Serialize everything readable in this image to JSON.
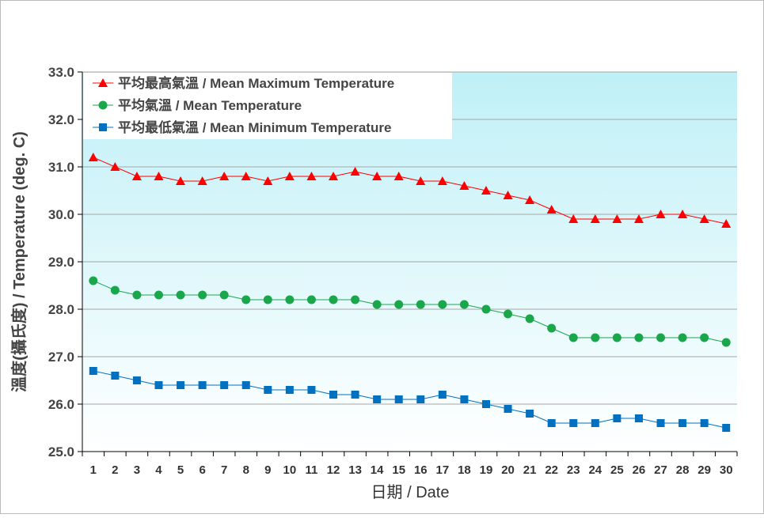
{
  "chart_data": {
    "type": "line",
    "xlabel": "日期 / Date",
    "ylabel": "溫度(攝氏度) / Temperature (deg. C)",
    "ylim": [
      25.0,
      33.0
    ],
    "yticks": [
      "25.0",
      "26.0",
      "27.0",
      "28.0",
      "29.0",
      "30.0",
      "31.0",
      "32.0",
      "33.0"
    ],
    "x": [
      1,
      2,
      3,
      4,
      5,
      6,
      7,
      8,
      9,
      10,
      11,
      12,
      13,
      14,
      15,
      16,
      17,
      18,
      19,
      20,
      21,
      22,
      23,
      24,
      25,
      26,
      27,
      28,
      29,
      30
    ],
    "grid": true,
    "legend_position": "top-left",
    "series": [
      {
        "name": "平均最高氣溫 / Mean Maximum Temperature",
        "color": "#ff0000",
        "marker": "triangle",
        "values": [
          31.2,
          31.0,
          30.8,
          30.8,
          30.7,
          30.7,
          30.8,
          30.8,
          30.7,
          30.8,
          30.8,
          30.8,
          30.9,
          30.8,
          30.8,
          30.7,
          30.7,
          30.6,
          30.5,
          30.4,
          30.3,
          30.1,
          29.9,
          29.9,
          29.9,
          29.9,
          30.0,
          30.0,
          29.9,
          29.8
        ]
      },
      {
        "name": "平均氣溫 / Mean Temperature",
        "color": "#1aa64a",
        "marker": "circle",
        "values": [
          28.6,
          28.4,
          28.3,
          28.3,
          28.3,
          28.3,
          28.3,
          28.2,
          28.2,
          28.2,
          28.2,
          28.2,
          28.2,
          28.1,
          28.1,
          28.1,
          28.1,
          28.1,
          28.0,
          27.9,
          27.8,
          27.6,
          27.4,
          27.4,
          27.4,
          27.4,
          27.4,
          27.4,
          27.4,
          27.3
        ]
      },
      {
        "name": "平均最低氣溫 / Mean Minimum Temperature",
        "color": "#0070c0",
        "marker": "square",
        "values": [
          26.7,
          26.6,
          26.5,
          26.4,
          26.4,
          26.4,
          26.4,
          26.4,
          26.3,
          26.3,
          26.3,
          26.2,
          26.2,
          26.1,
          26.1,
          26.1,
          26.2,
          26.1,
          26.0,
          25.9,
          25.8,
          25.6,
          25.6,
          25.6,
          25.7,
          25.7,
          25.6,
          25.6,
          25.6,
          25.5
        ]
      }
    ]
  }
}
